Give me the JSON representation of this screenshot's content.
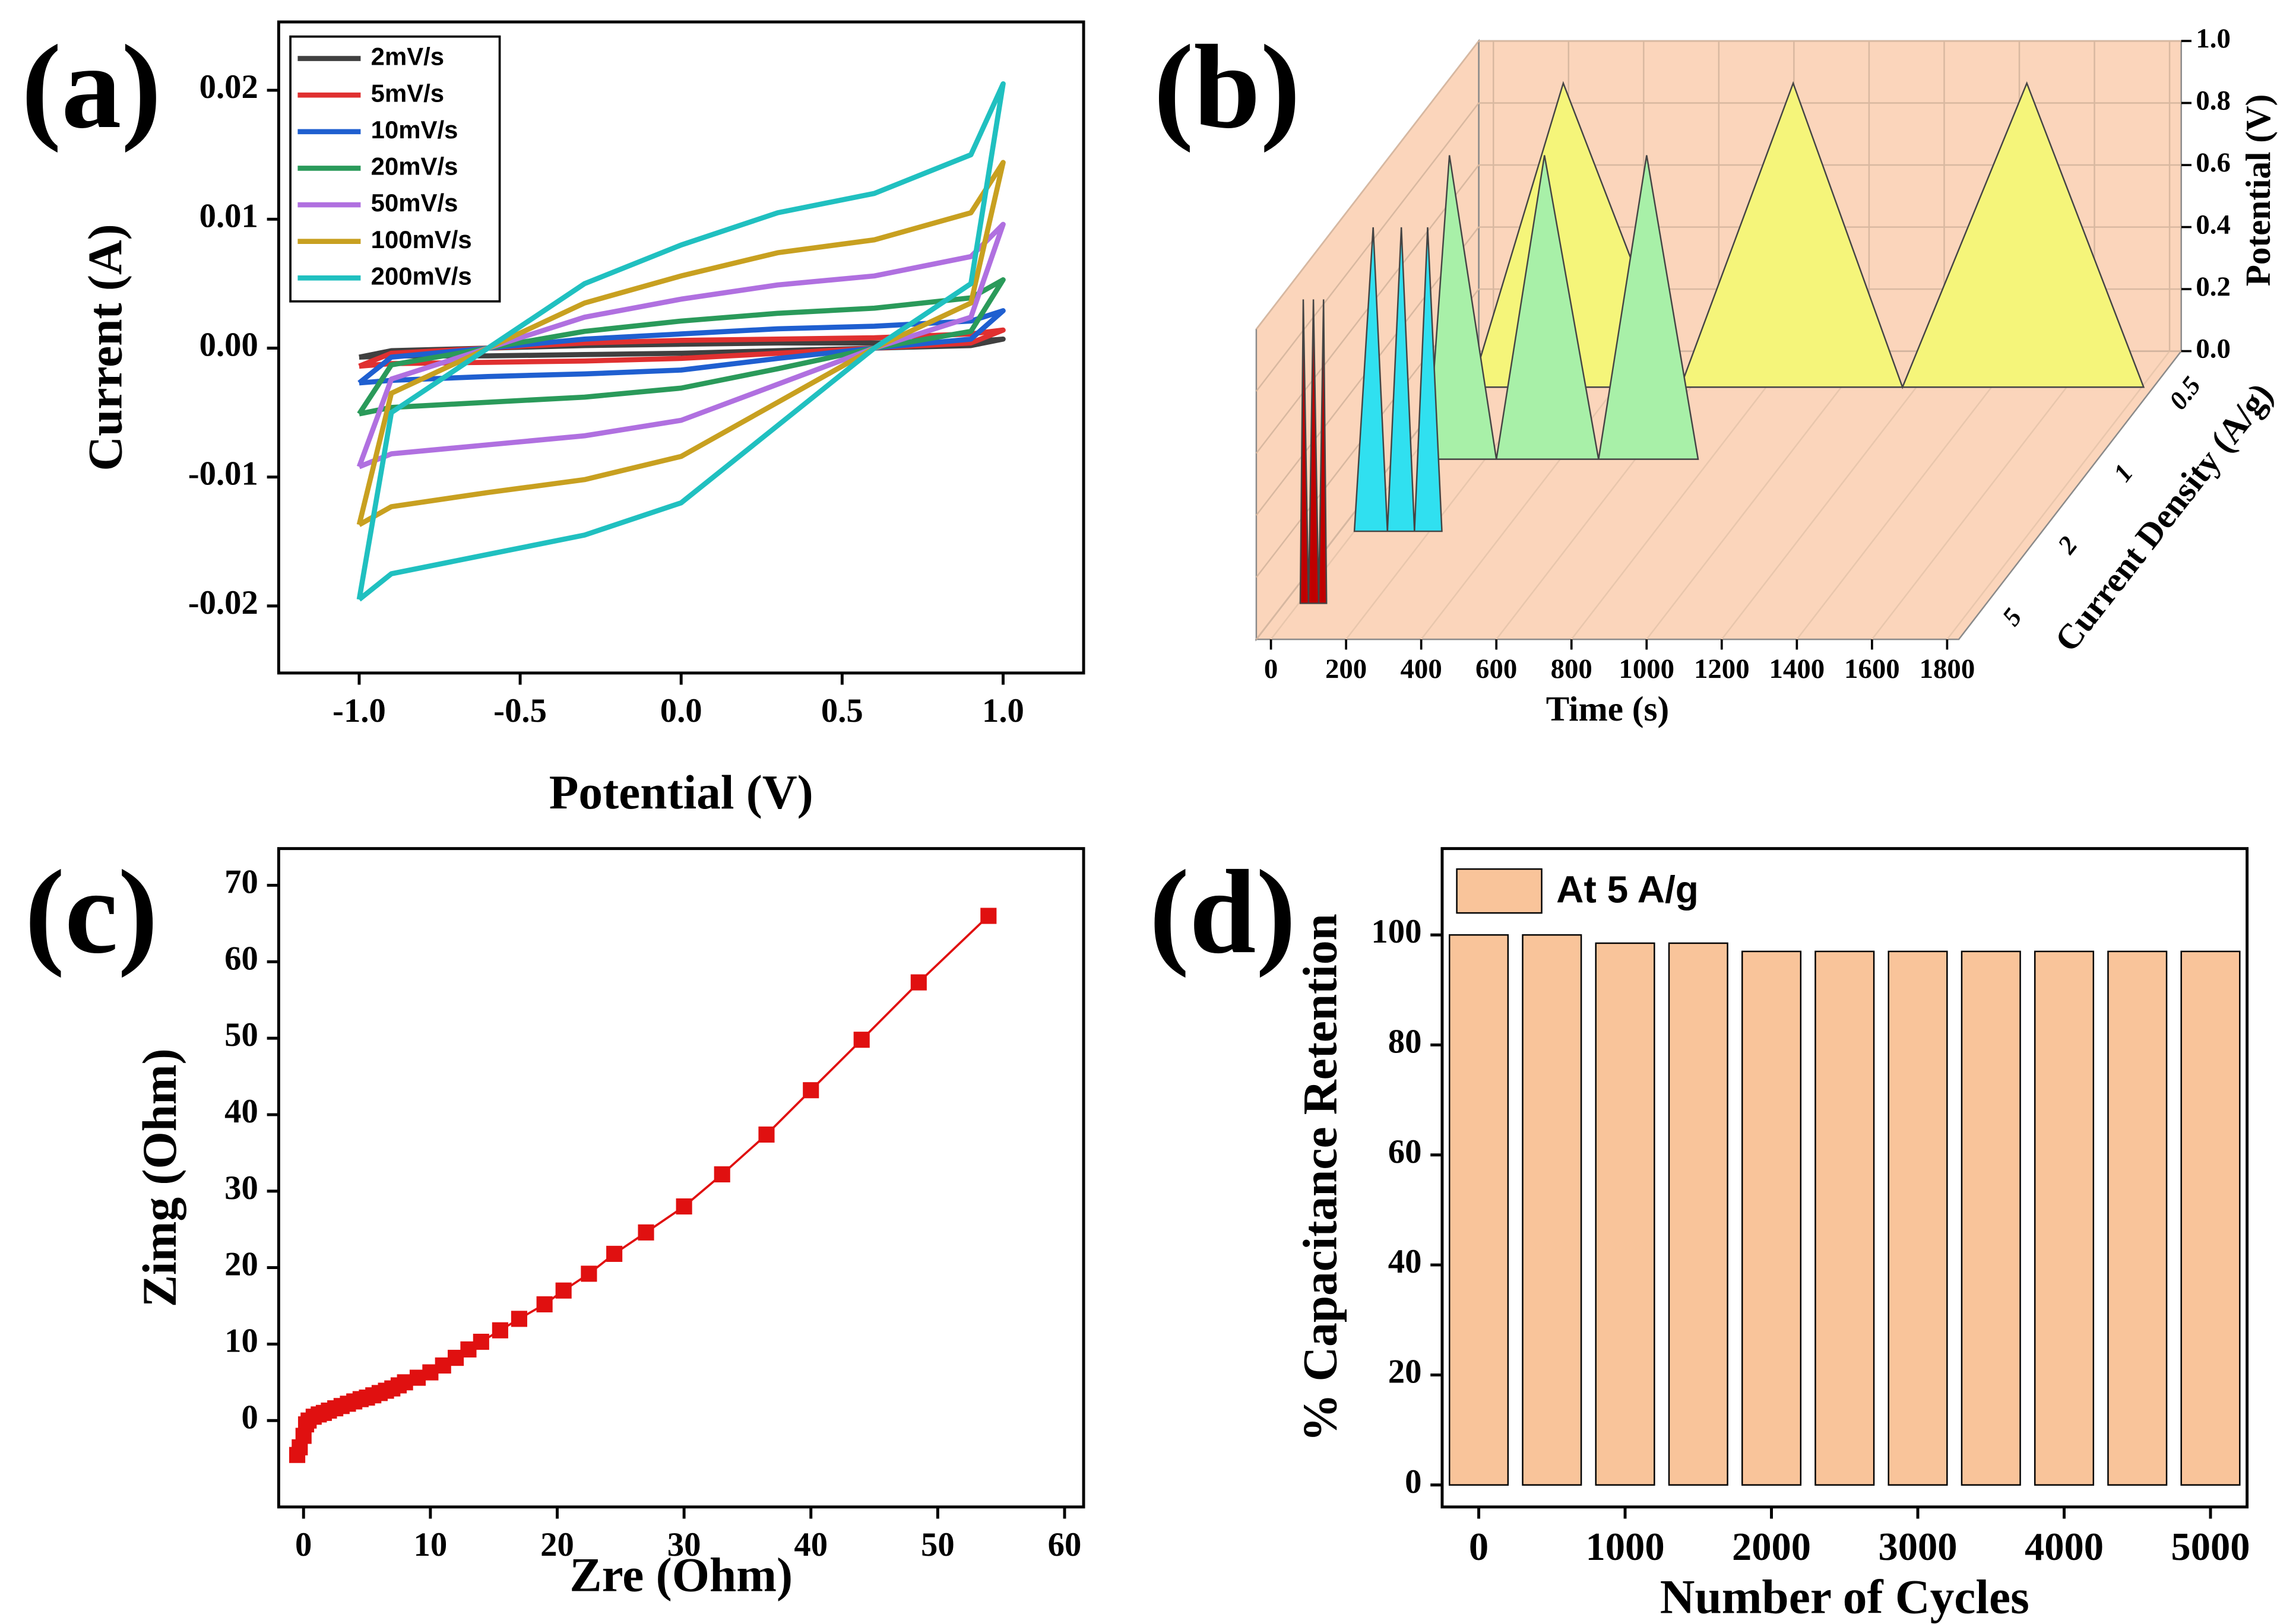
{
  "chart_data": [
    {
      "type": "line",
      "panel_label": "(a)",
      "xlabel": "Potential (V)",
      "ylabel": "Current (A)",
      "legend": "upper left",
      "xlim": [
        -1.25,
        1.25
      ],
      "ylim": [
        -0.0252,
        0.0253
      ],
      "xticks": [
        {
          "value": -1,
          "label": "-1.0"
        },
        -0.5,
        {
          "value": 0,
          "label": "0.0"
        },
        0.5,
        {
          "value": 1,
          "label": "1.0"
        }
      ],
      "yticks": [
        -0.02,
        -0.01,
        {
          "value": 0,
          "label": "0.00"
        },
        0.01,
        0.02
      ],
      "x": [
        -1,
        -0.9,
        -0.6,
        -0.3,
        0,
        0.3,
        0.6,
        0.9,
        1,
        0.9,
        0.6,
        0.3,
        0,
        -0.3,
        -0.6,
        -0.9,
        -1
      ],
      "series": [
        {
          "name": "2mV/s",
          "color": "#404040",
          "values": [
            -0.0007,
            -0.0002,
            0,
            0.0002,
            0.0003,
            0.0004,
            0.0004,
            0.0005,
            0.0007,
            0.0002,
            0,
            -0.0002,
            -0.0004,
            -0.0005,
            -0.0006,
            -0.0006,
            -0.0007
          ]
        },
        {
          "name": "5mV/s",
          "color": "#e03030",
          "values": [
            -0.0014,
            -0.0004,
            0,
            0.0004,
            0.0006,
            0.0007,
            0.0008,
            0.0011,
            0.0014,
            0.0004,
            0,
            -0.0004,
            -0.0008,
            -0.001,
            -0.0011,
            -0.0012,
            -0.0014
          ]
        },
        {
          "name": "10mV/s",
          "color": "#1f5fd0",
          "values": [
            -0.0027,
            -0.0007,
            0,
            0.0007,
            0.0011,
            0.0015,
            0.0017,
            0.0021,
            0.0029,
            0.0007,
            0,
            -0.0008,
            -0.0017,
            -0.002,
            -0.0022,
            -0.0025,
            -0.0027
          ]
        },
        {
          "name": "20mV/s",
          "color": "#2a9a5a",
          "values": [
            -0.0051,
            -0.0013,
            0,
            0.0013,
            0.0021,
            0.0027,
            0.0031,
            0.0039,
            0.0053,
            0.0013,
            0,
            -0.0016,
            -0.0031,
            -0.0038,
            -0.0042,
            -0.0046,
            -0.0051
          ]
        },
        {
          "name": "50mV/s",
          "color": "#b070e0",
          "values": [
            -0.0092,
            -0.0024,
            0,
            0.0024,
            0.0038,
            0.0049,
            0.0056,
            0.0071,
            0.0096,
            0.0024,
            0,
            -0.0028,
            -0.0056,
            -0.0068,
            -0.0075,
            -0.0082,
            -0.0092
          ]
        },
        {
          "name": "100mV/s",
          "color": "#c8a020",
          "values": [
            -0.0137,
            -0.0035,
            0,
            0.0035,
            0.0056,
            0.0074,
            0.0084,
            0.0105,
            0.0144,
            0.0035,
            0,
            -0.0042,
            -0.0084,
            -0.0102,
            -0.0112,
            -0.0123,
            -0.0137
          ]
        },
        {
          "name": "200mV/s",
          "color": "#20c0c0",
          "values": [
            -0.0195,
            -0.005,
            0,
            0.005,
            0.008,
            0.0105,
            0.012,
            0.015,
            0.0205,
            0.005,
            0,
            -0.006,
            -0.012,
            -0.0145,
            -0.016,
            -0.0175,
            -0.0195
          ]
        }
      ]
    },
    {
      "type": "waterfall3d",
      "panel_label": "(b)",
      "xlabel": "Time (s)",
      "ylabel": "Potential (V)",
      "zlabel": "Current Density (A/g)",
      "xlim": [
        -39,
        1831
      ],
      "ylim": [
        0,
        1.0
      ],
      "xticks": [
        0,
        200,
        400,
        600,
        800,
        1000,
        1200,
        1400,
        1600,
        1800
      ],
      "yticks": [
        {
          "value": 0,
          "label": "0.0"
        },
        0.2,
        0.4,
        0.6,
        0.8,
        {
          "value": 1,
          "label": "1.0"
        }
      ],
      "zticks": [
        "0.5",
        "1",
        "2",
        "5"
      ],
      "series": [
        {
          "color": "#f5f57a",
          "x": [
            16,
            260,
            572,
            872,
            1163,
            1494,
            1805
          ],
          "values": [
            0,
            0.98,
            0,
            0.98,
            0,
            0.98,
            0
          ]
        },
        {
          "color": "#a8f0a8",
          "x": [
            47,
            105,
            230,
            358,
            502,
            630,
            767
          ],
          "values": [
            0,
            0.98,
            0,
            0.98,
            0,
            0.98,
            0
          ]
        },
        {
          "color": "#30e0f0",
          "x": [
            0,
            50,
            88,
            125,
            160,
            195,
            233
          ],
          "values": [
            0,
            0.98,
            0,
            0.98,
            0,
            0.98,
            0
          ]
        },
        {
          "color": "#c00000",
          "x": [
            4,
            12,
            26,
            39,
            53,
            66,
            74
          ],
          "values": [
            0,
            0.98,
            0,
            0.98,
            0,
            0.98,
            0
          ]
        }
      ]
    },
    {
      "type": "line",
      "marker": "square",
      "panel_label": "(c)",
      "xlabel": "Zre (Ohm)",
      "ylabel": "Zimg (Ohm)",
      "xlim": [
        -1.96,
        61.5
      ],
      "ylim": [
        -11.3,
        74.8
      ],
      "xticks": [
        0,
        10,
        20,
        30,
        40,
        50,
        60
      ],
      "yticks": [
        0,
        10,
        20,
        30,
        40,
        50,
        60,
        70
      ],
      "x": [
        -0.5,
        -0.3,
        0,
        0.2,
        0.4,
        0.8,
        1.2,
        1.6,
        2,
        2.5,
        3,
        3.5,
        4,
        4.5,
        5,
        5.5,
        6,
        6.5,
        7,
        7.5,
        8,
        9,
        10,
        11,
        12,
        13,
        14,
        15.5,
        17,
        19,
        20.5,
        22.5,
        24.5,
        27,
        30,
        33,
        36.5,
        40,
        44,
        48.5,
        54
      ],
      "series": [
        {
          "color": "#e01010",
          "values": [
            -4.5,
            -3.5,
            -2,
            -0.5,
            0,
            0.5,
            0.8,
            1,
            1.3,
            1.6,
            1.9,
            2.2,
            2.5,
            2.8,
            3,
            3.3,
            3.6,
            3.9,
            4.2,
            4.6,
            5,
            5.6,
            6.3,
            7.2,
            8.2,
            9.3,
            10.3,
            11.8,
            13.3,
            15.2,
            17,
            19.2,
            21.8,
            24.6,
            28,
            32.2,
            37.4,
            43.2,
            49.8,
            57.3,
            66
          ]
        }
      ]
    },
    {
      "type": "bar",
      "panel_label": "(d)",
      "xlabel": "Number of Cycles",
      "ylabel": "% Capacitance Retention",
      "legend": "upper left",
      "ylim": [
        -4,
        115.7
      ],
      "yticks": [
        0,
        20,
        40,
        60,
        80,
        100
      ],
      "categories": [
        "0",
        null,
        "1000",
        null,
        "2000",
        null,
        "3000",
        null,
        "4000",
        null,
        "5000"
      ],
      "series": [
        {
          "name": "At 5 A/g",
          "color": "#f9c49a",
          "values": [
            100,
            100,
            98.5,
            98.5,
            97,
            97,
            97,
            97,
            97,
            97,
            97
          ]
        }
      ]
    }
  ]
}
